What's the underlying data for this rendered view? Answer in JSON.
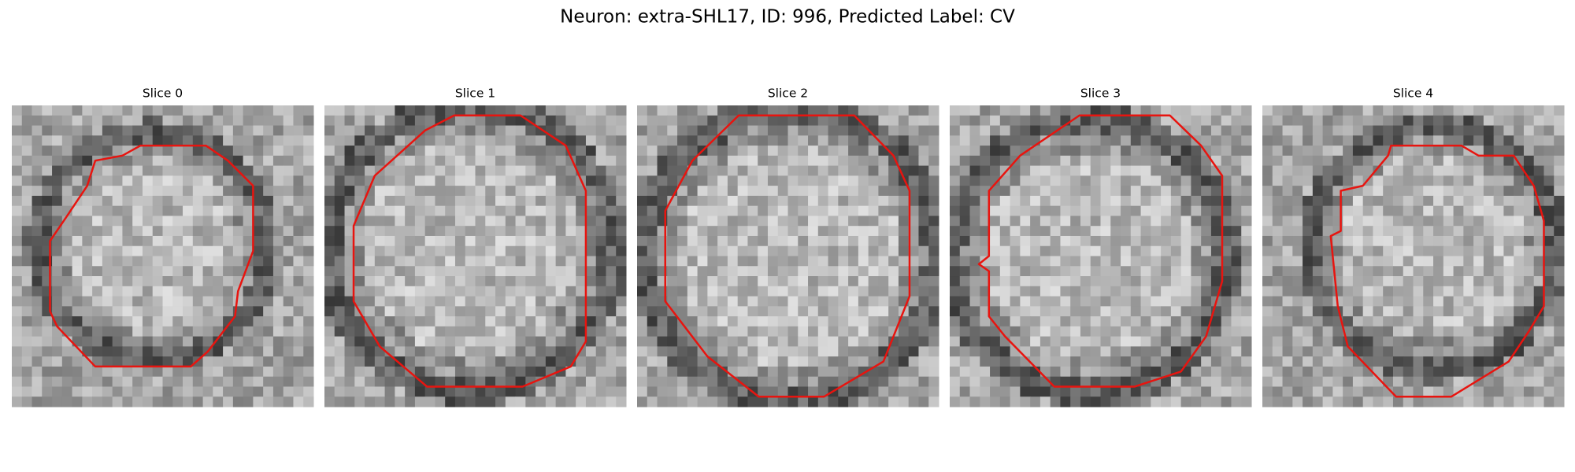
{
  "title": "Neuron: extra-SHL17, ID: 996, Predicted Label: CV",
  "panels": [
    {
      "title": "Slice 0"
    },
    {
      "title": "Slice 1"
    },
    {
      "title": "Slice 2"
    },
    {
      "title": "Slice 3"
    },
    {
      "title": "Slice 4"
    }
  ]
}
